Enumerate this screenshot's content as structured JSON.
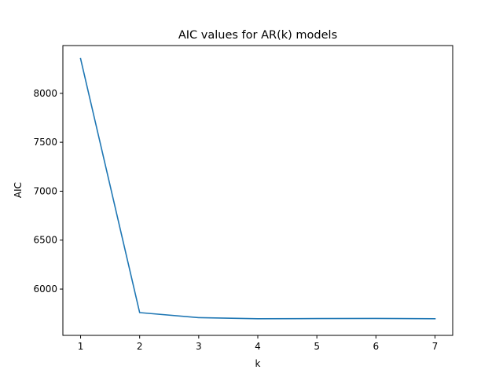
{
  "chart_data": {
    "type": "line",
    "title": "AIC values for AR(k) models",
    "xlabel": "k",
    "ylabel": "AIC",
    "x": [
      1,
      2,
      3,
      4,
      5,
      6,
      7
    ],
    "series": [
      {
        "values": [
          8355,
          5760,
          5708,
          5697,
          5699,
          5700,
          5697
        ],
        "color": "#1f77b4"
      }
    ],
    "xlim": [
      0.7,
      7.3
    ],
    "ylim": [
      5527,
      8488
    ],
    "xticks": [
      1,
      2,
      3,
      4,
      5,
      6,
      7
    ],
    "yticks": [
      6000,
      6500,
      7000,
      7500,
      8000
    ],
    "grid": false,
    "legend": "none"
  }
}
